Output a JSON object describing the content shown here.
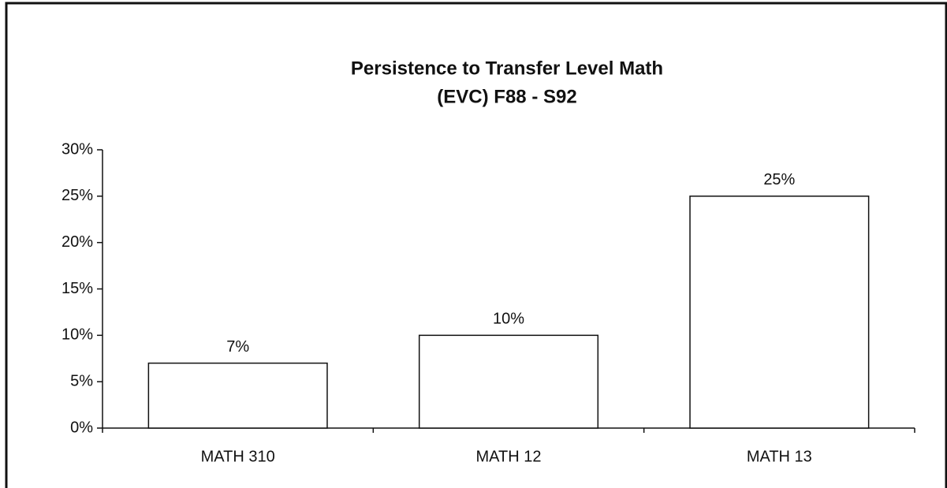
{
  "chart_data": {
    "type": "bar",
    "title": "Persistence to Transfer Level Math",
    "subtitle": "(EVC) F88 - S92",
    "categories": [
      "MATH 310",
      "MATH 12",
      "MATH 13"
    ],
    "values": [
      7,
      10,
      25
    ],
    "value_labels": [
      "7%",
      "10%",
      "25%"
    ],
    "color": "#ffffff",
    "ylim": [
      0,
      30
    ],
    "yticks": [
      {
        "value": 0,
        "label": "0%"
      },
      {
        "value": 5,
        "label": "5%"
      },
      {
        "value": 10,
        "label": "10%"
      },
      {
        "value": 15,
        "label": "15%"
      },
      {
        "value": 20,
        "label": "20%"
      },
      {
        "value": 25,
        "label": "25%"
      },
      {
        "value": 30,
        "label": "30%"
      }
    ],
    "grid": false
  }
}
